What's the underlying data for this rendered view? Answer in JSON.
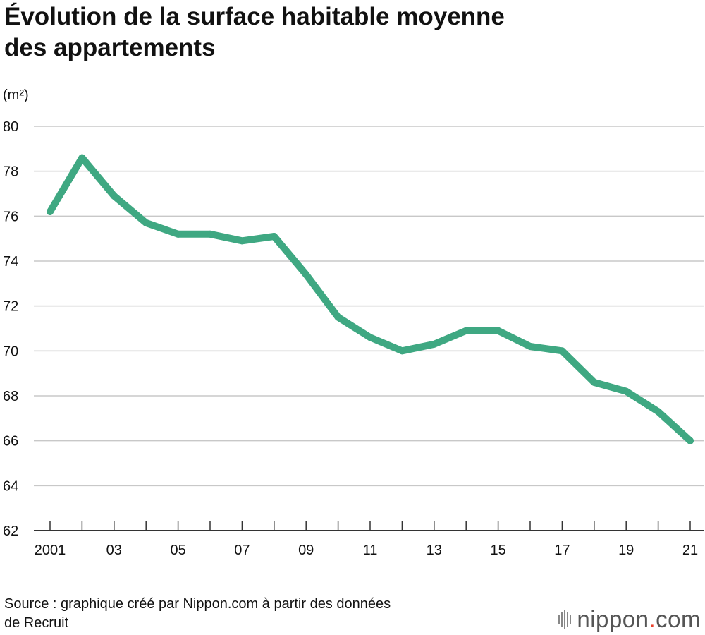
{
  "title": {
    "line1": "Évolution de la surface habitable moyenne",
    "line2": "des appartements"
  },
  "unit_label": "(m²)",
  "source": {
    "line1": "Source : graphique créé par Nippon.com à partir des données",
    "line2": "de Recruit"
  },
  "brand": {
    "name": "nippon",
    "dot": ".",
    "tld": "com"
  },
  "colors": {
    "line": "#3fa882",
    "grid": "#c8c8c8",
    "axis": "#333333",
    "text": "#111111"
  },
  "chart_data": {
    "type": "line",
    "title": "Évolution de la surface habitable moyenne des appartements",
    "xlabel": "",
    "ylabel": "(m²)",
    "ylim": [
      62,
      80
    ],
    "yticks": [
      62,
      64,
      66,
      68,
      70,
      72,
      74,
      76,
      78,
      80
    ],
    "x": [
      2001,
      2002,
      2003,
      2004,
      2005,
      2006,
      2007,
      2008,
      2009,
      2010,
      2011,
      2012,
      2013,
      2014,
      2015,
      2016,
      2017,
      2018,
      2019,
      2020,
      2021
    ],
    "xtick_labels": [
      "2001",
      "03",
      "05",
      "07",
      "09",
      "11",
      "13",
      "15",
      "17",
      "19",
      "21"
    ],
    "xtick_label_years": [
      2001,
      2003,
      2005,
      2007,
      2009,
      2011,
      2013,
      2015,
      2017,
      2019,
      2021
    ],
    "series": [
      {
        "name": "Surface habitable moyenne",
        "values": [
          76.2,
          78.6,
          76.9,
          75.7,
          75.2,
          75.2,
          74.9,
          75.1,
          73.4,
          71.5,
          70.6,
          70.0,
          70.3,
          70.9,
          70.9,
          70.2,
          70.0,
          68.6,
          68.2,
          67.3,
          66.0
        ]
      }
    ],
    "grid": true,
    "legend": "none"
  }
}
